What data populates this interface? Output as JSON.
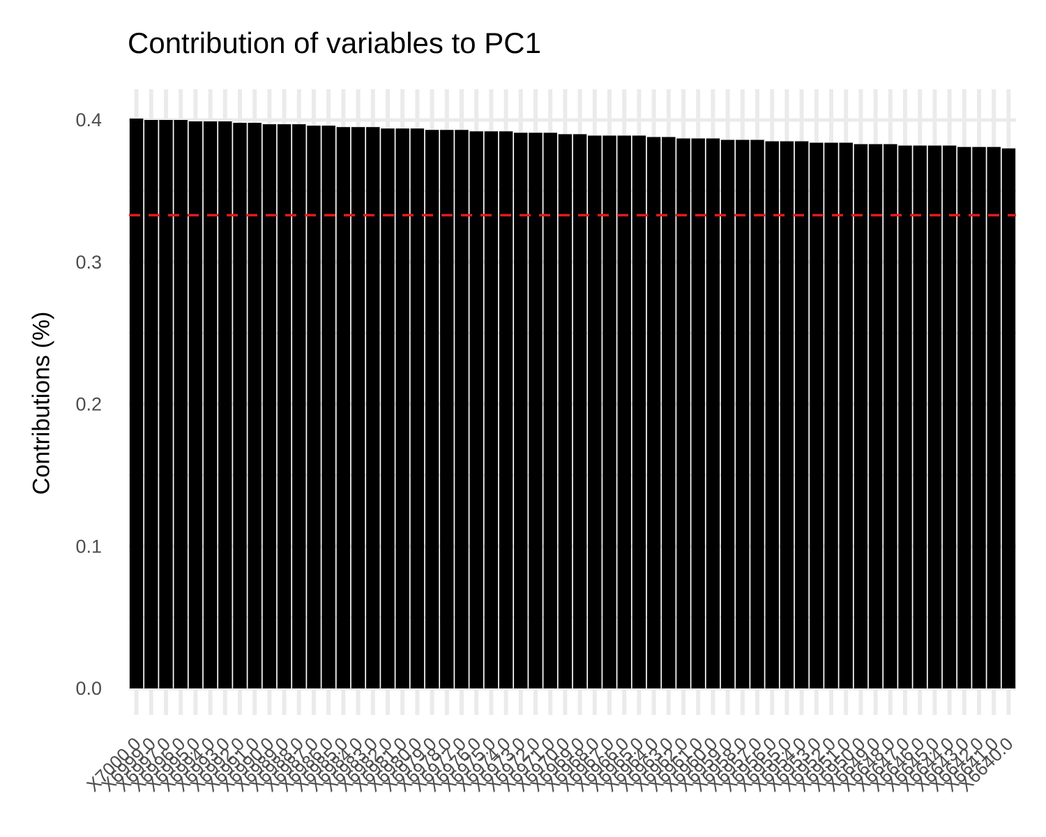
{
  "chart_data": {
    "type": "bar",
    "title": "Contribution of variables to PC1",
    "xlabel": "",
    "ylabel": "Contributions (%)",
    "ylim": [
      0,
      0.42
    ],
    "yticks": [
      "0.0",
      "0.1",
      "0.2",
      "0.3",
      "0.4"
    ],
    "reference_line": {
      "value": 0.333,
      "color": "#e41a1c",
      "style": "dashed"
    },
    "bar_color": "#000000",
    "grid": true,
    "categories": [
      "X7000.0",
      "X6999.0",
      "X6997.0",
      "X6996.0",
      "X6995.0",
      "X6994.0",
      "X6993.0",
      "X6992.0",
      "X6991.0",
      "X6990.0",
      "X6989.0",
      "X6988.0",
      "X6987.0",
      "X6986.0",
      "X6985.0",
      "X6984.0",
      "X6983.0",
      "X6982.0",
      "X6981.0",
      "X6980.0",
      "X6979.0",
      "X6978.0",
      "X6977.0",
      "X6976.0",
      "X6975.0",
      "X6974.0",
      "X6973.0",
      "X6972.0",
      "X6971.0",
      "X6970.0",
      "X6969.0",
      "X6968.0",
      "X6967.0",
      "X6966.0",
      "X6965.0",
      "X6964.0",
      "X6963.0",
      "X6962.0",
      "X6961.0",
      "X6960.0",
      "X6959.0",
      "X6958.0",
      "X6957.0",
      "X6956.0",
      "X6955.0",
      "X6954.0",
      "X6953.0",
      "X6952.0",
      "X6951.0",
      "X6950.0",
      "X6649.0",
      "X6648.0",
      "X6647.0",
      "X6646.0",
      "X6645.0",
      "X6644.0",
      "X6643.0",
      "X6642.0",
      "X6641.0",
      "X6640.0"
    ],
    "values": [
      0.401,
      0.4,
      0.4,
      0.4,
      0.399,
      0.399,
      0.399,
      0.398,
      0.398,
      0.397,
      0.397,
      0.397,
      0.396,
      0.396,
      0.395,
      0.395,
      0.395,
      0.394,
      0.394,
      0.394,
      0.393,
      0.393,
      0.393,
      0.392,
      0.392,
      0.392,
      0.391,
      0.391,
      0.391,
      0.39,
      0.39,
      0.389,
      0.389,
      0.389,
      0.389,
      0.388,
      0.388,
      0.387,
      0.387,
      0.387,
      0.386,
      0.386,
      0.386,
      0.385,
      0.385,
      0.385,
      0.384,
      0.384,
      0.384,
      0.383,
      0.383,
      0.383,
      0.382,
      0.382,
      0.382,
      0.382,
      0.381,
      0.381,
      0.381,
      0.38
    ]
  }
}
